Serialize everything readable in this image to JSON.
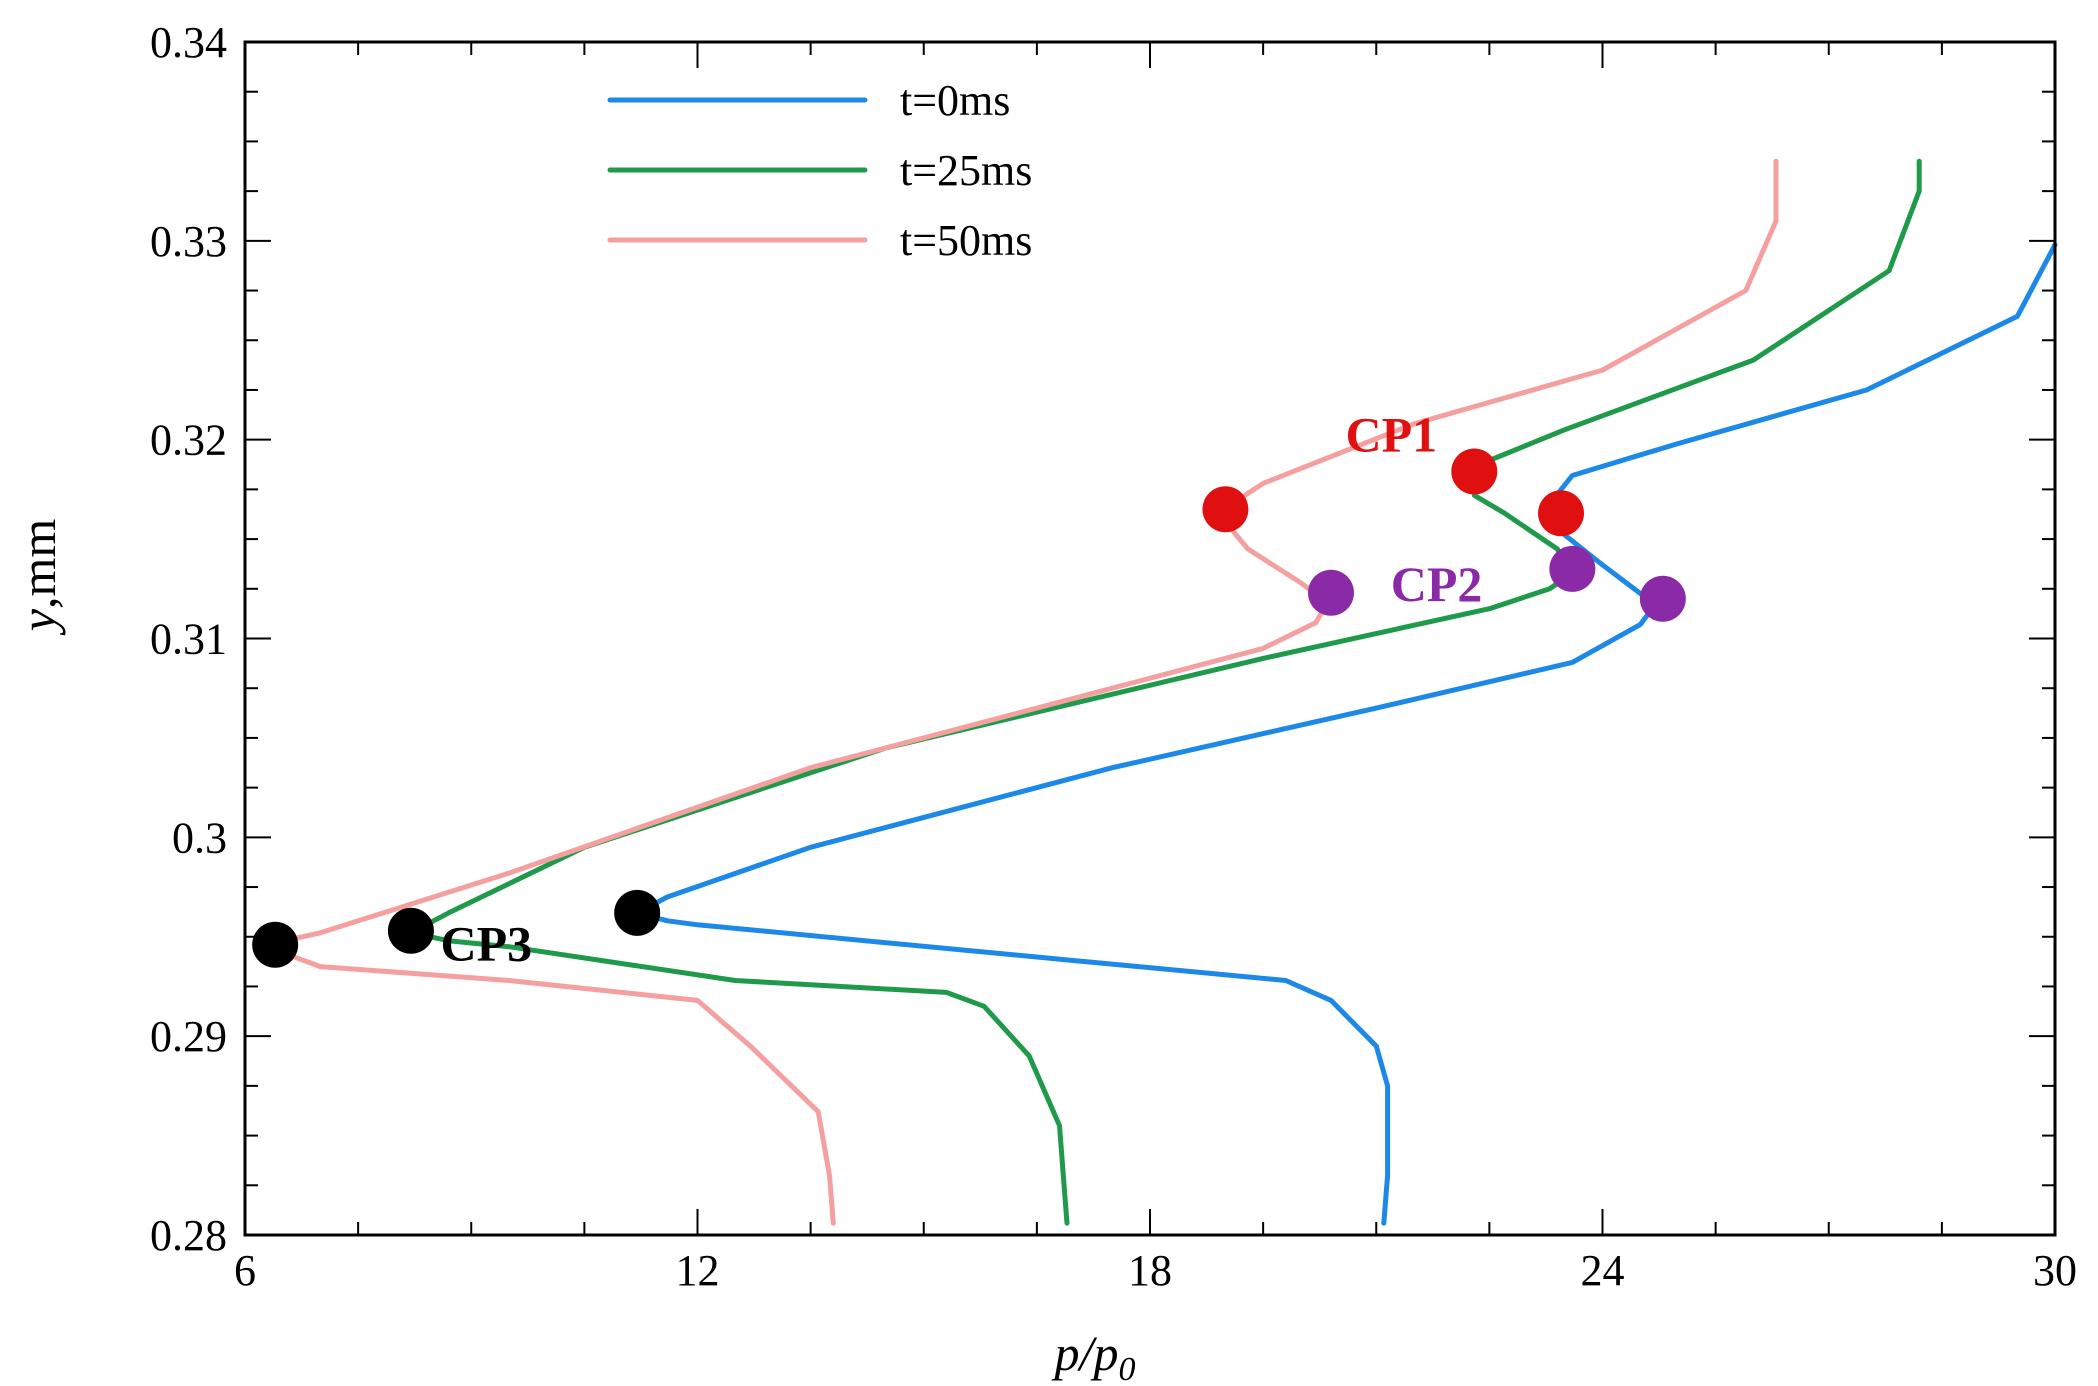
{
  "chart_data": {
    "type": "line",
    "title": "",
    "xlabel": "p/p",
    "xlabel_sub": "0",
    "ylabel": "y",
    "ylabel_unit": ",mm",
    "xlim": [
      6,
      30
    ],
    "ylim": [
      0.28,
      0.34
    ],
    "xticks": [
      6,
      12,
      18,
      24,
      30
    ],
    "xtick_labels": [
      "6",
      "12",
      "18",
      "24",
      "30"
    ],
    "yticks": [
      0.28,
      0.29,
      0.3,
      0.31,
      0.32,
      0.33,
      0.34
    ],
    "ytick_labels": [
      "0.28",
      "0.29",
      "0.3",
      "0.31",
      "0.32",
      "0.33",
      "0.34"
    ],
    "grid": false,
    "legend_position": "top-center",
    "series": [
      {
        "name": "t=0ms",
        "color": "#1c88e8",
        "points": [
          [
            21.1,
            0.2806
          ],
          [
            21.15,
            0.283
          ],
          [
            21.15,
            0.2875
          ],
          [
            21.0,
            0.2895
          ],
          [
            20.4,
            0.2918
          ],
          [
            19.8,
            0.2928
          ],
          [
            17.0,
            0.2938
          ],
          [
            12.0,
            0.2956
          ],
          [
            11.6,
            0.2958
          ],
          [
            11.2,
            0.2962
          ],
          [
            11.6,
            0.297
          ],
          [
            13.5,
            0.2995
          ],
          [
            17.5,
            0.3035
          ],
          [
            21.0,
            0.3065
          ],
          [
            23.6,
            0.3088
          ],
          [
            24.5,
            0.3107
          ],
          [
            24.7,
            0.3117
          ],
          [
            24.0,
            0.3137
          ],
          [
            23.4,
            0.3155
          ],
          [
            23.2,
            0.3163
          ],
          [
            23.6,
            0.3182
          ],
          [
            25.0,
            0.3198
          ],
          [
            27.5,
            0.3225
          ],
          [
            29.5,
            0.3262
          ],
          [
            30.0,
            0.3298
          ]
        ]
      },
      {
        "name": "t=25ms",
        "color": "#1f9a4a",
        "points": [
          [
            16.9,
            0.2806
          ],
          [
            16.85,
            0.283
          ],
          [
            16.8,
            0.2855
          ],
          [
            16.4,
            0.289
          ],
          [
            15.8,
            0.2915
          ],
          [
            15.3,
            0.2922
          ],
          [
            12.5,
            0.2928
          ],
          [
            9.5,
            0.2945
          ],
          [
            8.7,
            0.2948
          ],
          [
            8.2,
            0.2952
          ],
          [
            8.7,
            0.2962
          ],
          [
            10.5,
            0.2995
          ],
          [
            14.5,
            0.3045
          ],
          [
            19.5,
            0.309
          ],
          [
            22.5,
            0.3115
          ],
          [
            23.3,
            0.3125
          ],
          [
            23.6,
            0.3133
          ],
          [
            23.4,
            0.3145
          ],
          [
            22.7,
            0.3163
          ],
          [
            22.3,
            0.3172
          ],
          [
            22.4,
            0.3188
          ],
          [
            23.5,
            0.3205
          ],
          [
            26.0,
            0.324
          ],
          [
            27.8,
            0.3285
          ],
          [
            28.2,
            0.3325
          ],
          [
            28.2,
            0.334
          ]
        ]
      },
      {
        "name": "t=50ms",
        "color": "#f4a0a0",
        "points": [
          [
            13.8,
            0.2806
          ],
          [
            13.75,
            0.283
          ],
          [
            13.6,
            0.2862
          ],
          [
            12.7,
            0.2895
          ],
          [
            12.0,
            0.2918
          ],
          [
            9.5,
            0.2928
          ],
          [
            7.0,
            0.2935
          ],
          [
            6.5,
            0.2942
          ],
          [
            6.4,
            0.2947
          ],
          [
            7.0,
            0.2952
          ],
          [
            9.5,
            0.2982
          ],
          [
            13.5,
            0.3035
          ],
          [
            17.5,
            0.3075
          ],
          [
            19.5,
            0.3095
          ],
          [
            20.2,
            0.3108
          ],
          [
            20.35,
            0.3118
          ],
          [
            20.0,
            0.3128
          ],
          [
            19.3,
            0.3145
          ],
          [
            18.9,
            0.3163
          ],
          [
            19.5,
            0.3178
          ],
          [
            21.5,
            0.3208
          ],
          [
            24.0,
            0.3235
          ],
          [
            25.9,
            0.3275
          ],
          [
            26.3,
            0.331
          ],
          [
            26.3,
            0.334
          ]
        ]
      }
    ],
    "markers": [
      {
        "group": "CP1",
        "color": "#e01010",
        "points": [
          [
            19.0,
            0.3165
          ],
          [
            22.3,
            0.3184
          ],
          [
            23.45,
            0.3163
          ]
        ]
      },
      {
        "group": "CP2",
        "color": "#8a2aa6",
        "points": [
          [
            20.4,
            0.3123
          ],
          [
            23.6,
            0.3135
          ],
          [
            24.8,
            0.312
          ]
        ]
      },
      {
        "group": "CP3",
        "color": "#000000",
        "points": [
          [
            6.4,
            0.2946
          ],
          [
            8.2,
            0.2953
          ],
          [
            11.2,
            0.2962
          ]
        ]
      }
    ],
    "annotations": [
      {
        "text": "CP1",
        "color": "#e01010",
        "x": 21.2,
        "y": 0.3203
      },
      {
        "text": "CP2",
        "color": "#8a2aa6",
        "x": 21.8,
        "y": 0.3128
      },
      {
        "text": "CP3",
        "color": "#000000",
        "x": 9.2,
        "y": 0.2947
      }
    ]
  }
}
